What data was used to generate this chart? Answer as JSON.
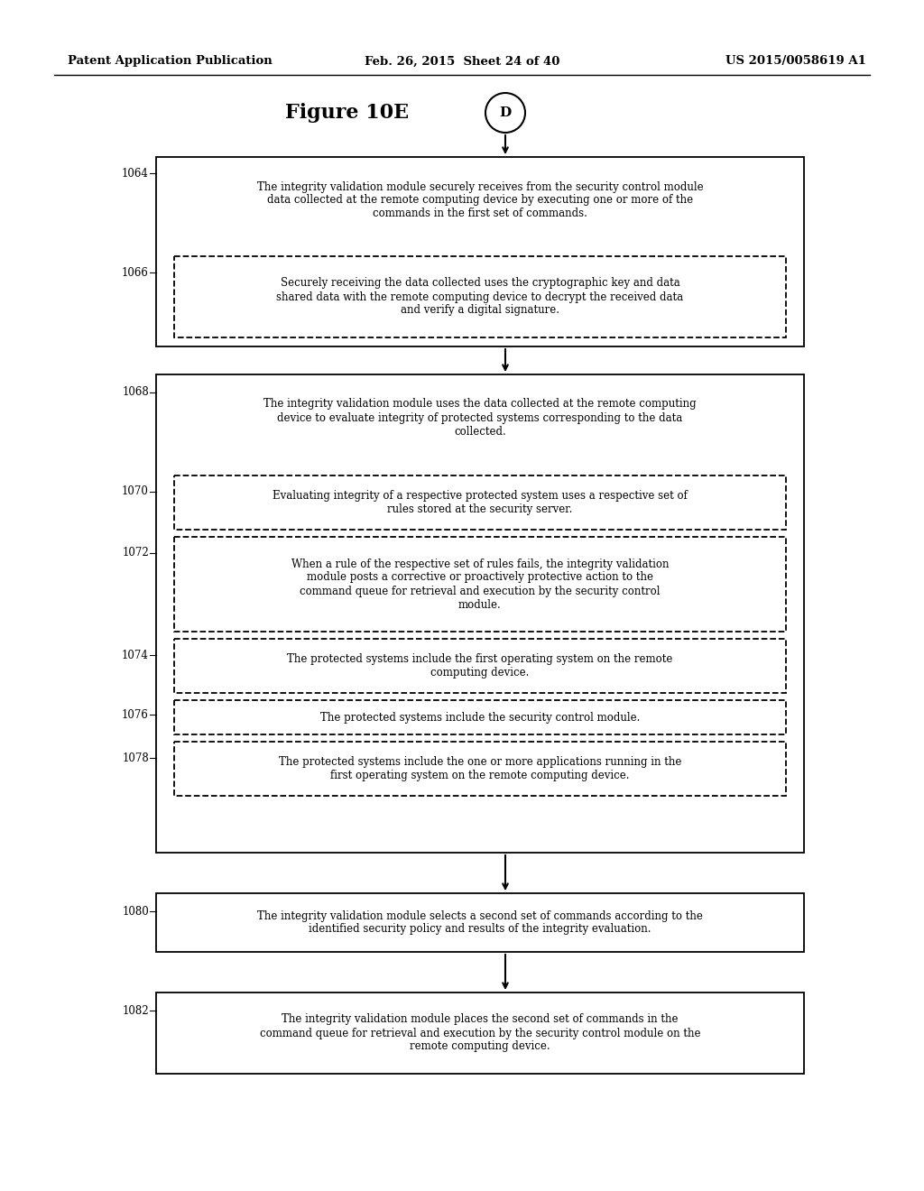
{
  "header_left": "Patent Application Publication",
  "header_mid": "Feb. 26, 2015  Sheet 24 of 40",
  "header_right": "US 2015/0058619 A1",
  "figure_title": "Figure 10E",
  "connector_label": "D",
  "background_color": "#ffffff",
  "text_1064": "The integrity validation module securely receives from the security control module\ndata collected at the remote computing device by executing one or more of the\ncommands in the first set of commands.",
  "text_1066": "Securely receiving the data collected uses the cryptographic key and data\nshared data with the remote computing device to decrypt the received data\nand verify a digital signature.",
  "text_1068": "The integrity validation module uses the data collected at the remote computing\ndevice to evaluate integrity of protected systems corresponding to the data\ncollected.",
  "text_1070": "Evaluating integrity of a respective protected system uses a respective set of\nrules stored at the security server.",
  "text_1072": "When a rule of the respective set of rules fails, the integrity validation\nmodule posts a corrective or proactively protective action to the\ncommand queue for retrieval and execution by the security control\nmodule.",
  "text_1074": "The protected systems include the first operating system on the remote\ncomputing device.",
  "text_1076": "The protected systems include the security control module.",
  "text_1078": "The protected systems include the one or more applications running in the\nfirst operating system on the remote computing device.",
  "text_1080": "The integrity validation module selects a second set of commands according to the\nidentified security policy and results of the integrity evaluation.",
  "text_1082": "The integrity validation module places the second set of commands in the\ncommand queue for retrieval and execution by the security control module on the\nremote computing device."
}
